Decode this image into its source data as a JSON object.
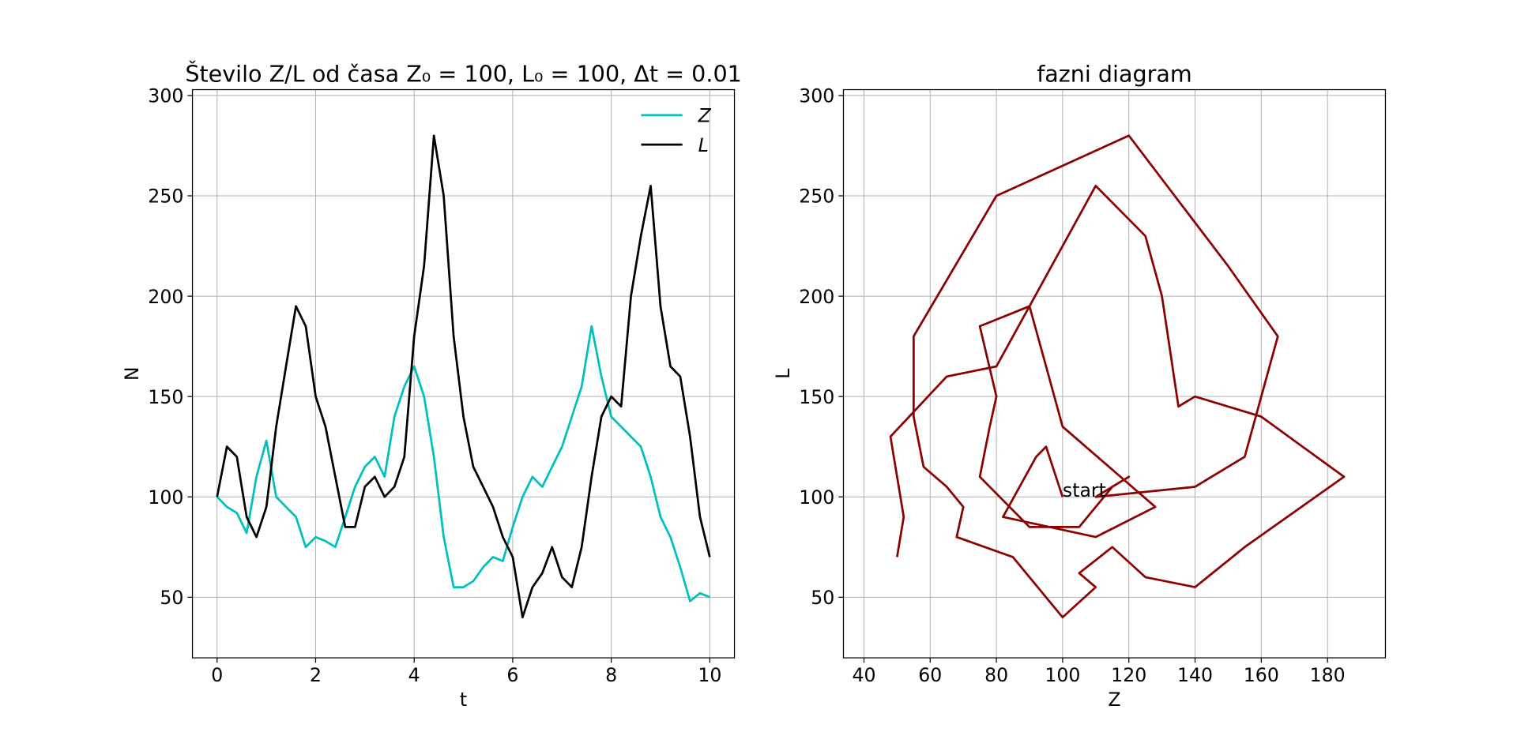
{
  "chart_data": [
    {
      "type": "line",
      "title": "Število Z/L od časa Z₀ = 100, L₀ = 100, Δt = 0.01",
      "xlabel": "t",
      "ylabel": "N",
      "x": [
        0,
        0.2,
        0.4,
        0.6,
        0.8,
        1.0,
        1.2,
        1.4,
        1.6,
        1.8,
        2.0,
        2.2,
        2.4,
        2.6,
        2.8,
        3.0,
        3.2,
        3.4,
        3.6,
        3.8,
        4.0,
        4.2,
        4.4,
        4.6,
        4.8,
        5.0,
        5.2,
        5.4,
        5.6,
        5.8,
        6.0,
        6.2,
        6.4,
        6.6,
        6.8,
        7.0,
        7.2,
        7.4,
        7.6,
        7.8,
        8.0,
        8.2,
        8.4,
        8.6,
        8.8,
        9.0,
        9.2,
        9.4,
        9.6,
        9.8,
        10.0
      ],
      "series": [
        {
          "name": "Z",
          "color": "#00bfbf",
          "values": [
            100,
            95,
            92,
            82,
            110,
            128,
            100,
            95,
            90,
            75,
            80,
            78,
            75,
            90,
            105,
            115,
            120,
            110,
            140,
            155,
            165,
            150,
            120,
            80,
            55,
            55,
            58,
            65,
            70,
            68,
            85,
            100,
            110,
            105,
            115,
            125,
            140,
            155,
            185,
            160,
            140,
            135,
            130,
            125,
            110,
            90,
            80,
            65,
            48,
            52,
            50
          ]
        },
        {
          "name": "L",
          "color": "#000000",
          "values": [
            100,
            125,
            120,
            90,
            80,
            95,
            135,
            165,
            195,
            185,
            150,
            135,
            110,
            85,
            85,
            105,
            110,
            100,
            105,
            120,
            180,
            215,
            280,
            250,
            180,
            140,
            115,
            105,
            95,
            80,
            70,
            40,
            55,
            62,
            75,
            60,
            55,
            75,
            110,
            140,
            150,
            145,
            200,
            230,
            255,
            195,
            165,
            160,
            130,
            90,
            70
          ]
        }
      ],
      "xlim": [
        -0.5,
        10.5
      ],
      "ylim": [
        19.8,
        302.9
      ],
      "xticks": [
        0,
        2,
        4,
        6,
        8,
        10
      ],
      "yticks": [
        50,
        100,
        150,
        200,
        250,
        300
      ],
      "grid": true,
      "legend": "upper right"
    },
    {
      "type": "line",
      "title": "fazni diagram",
      "xlabel": "Z",
      "ylabel": "L",
      "x": [
        100,
        95,
        92,
        82,
        110,
        128,
        100,
        95,
        90,
        75,
        80,
        78,
        75,
        90,
        105,
        115,
        120,
        110,
        140,
        155,
        165,
        150,
        120,
        80,
        55,
        55,
        58,
        65,
        70,
        68,
        85,
        100,
        110,
        105,
        115,
        125,
        140,
        155,
        185,
        160,
        140,
        135,
        130,
        125,
        110,
        90,
        80,
        65,
        48,
        52,
        50
      ],
      "series": [
        {
          "color": "#8b0000",
          "values": [
            100,
            125,
            120,
            90,
            80,
            95,
            135,
            165,
            195,
            185,
            150,
            135,
            110,
            85,
            85,
            105,
            110,
            100,
            105,
            120,
            180,
            215,
            280,
            250,
            180,
            140,
            115,
            105,
            95,
            80,
            70,
            40,
            55,
            62,
            75,
            60,
            55,
            75,
            110,
            140,
            150,
            145,
            200,
            230,
            255,
            195,
            165,
            160,
            130,
            90,
            70
          ]
        }
      ],
      "annotations": [
        {
          "text": "start",
          "x": 100,
          "y": 100
        }
      ],
      "xlim": [
        33.8,
        197.5
      ],
      "ylim": [
        19.8,
        302.9
      ],
      "xticks": [
        40,
        60,
        80,
        100,
        120,
        140,
        160,
        180
      ],
      "yticks": [
        50,
        100,
        150,
        200,
        250,
        300
      ],
      "grid": true
    }
  ]
}
